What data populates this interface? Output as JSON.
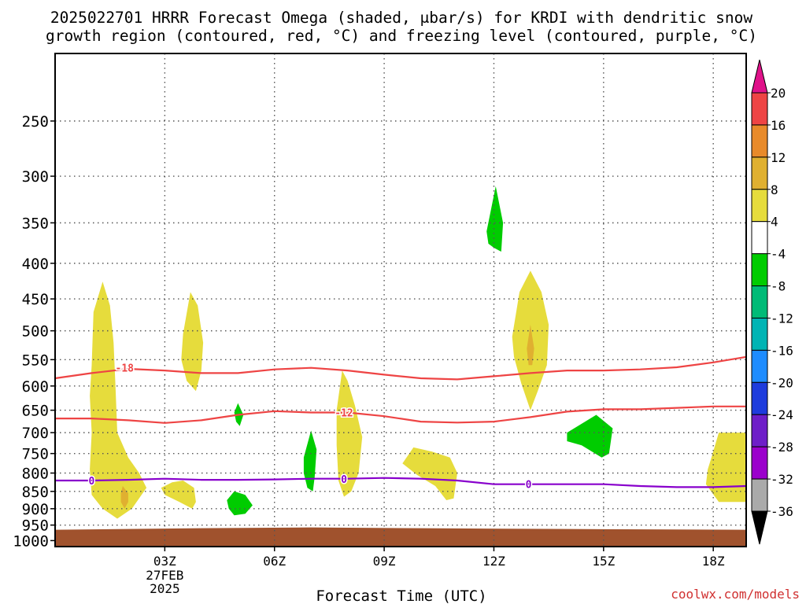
{
  "chart_data": {
    "type": "contour",
    "title_line1": "2025022701 HRRR Forecast Omega (shaded, μbar/s) for KRDI with dendritic snow",
    "title_line2": "growth region (contoured, red, °C) and freezing level (contoured, purple, °C)",
    "xlabel": "Forecast Time (UTC)",
    "credit": "coolwx.com/models",
    "x_ticks": [
      {
        "hour": 3,
        "label": "03Z"
      },
      {
        "hour": 6,
        "label": "06Z"
      },
      {
        "hour": 9,
        "label": "09Z"
      },
      {
        "hour": 12,
        "label": "12Z"
      },
      {
        "hour": 15,
        "label": "15Z"
      },
      {
        "hour": 18,
        "label": "18Z"
      }
    ],
    "date_label": [
      "27FEB",
      "2025"
    ],
    "xlim": [
      0,
      18.9
    ],
    "y_ticks": [
      250,
      300,
      350,
      400,
      450,
      500,
      550,
      600,
      650,
      700,
      750,
      800,
      850,
      900,
      950,
      1000
    ],
    "ylim_hPa": [
      200,
      1020
    ],
    "y_scale": "log-pressure",
    "grid": true,
    "ground_top_hPa": 965,
    "colors": {
      "frame": "#000000",
      "grid": "#555555",
      "ground": "#a0522d",
      "dgz_line": "#ee4444",
      "freezing_line": "#8800cc"
    },
    "colorbar": {
      "levels": [
        20,
        16,
        12,
        8,
        4,
        -4,
        -8,
        -12,
        -16,
        -20,
        -24,
        -28,
        -32,
        -36
      ],
      "bands": [
        {
          "from": 16,
          "to": 20,
          "color": "#ee4444"
        },
        {
          "from": 12,
          "to": 16,
          "color": "#e88a2a"
        },
        {
          "from": 8,
          "to": 12,
          "color": "#e0b030"
        },
        {
          "from": 4,
          "to": 8,
          "color": "#e6dc3c"
        },
        {
          "from": -4,
          "to": 4,
          "color": "#ffffff"
        },
        {
          "from": -8,
          "to": -4,
          "color": "#00cc00"
        },
        {
          "from": -12,
          "to": -8,
          "color": "#00bb77"
        },
        {
          "from": -16,
          "to": -12,
          "color": "#00b4b4"
        },
        {
          "from": -20,
          "to": -16,
          "color": "#1e8cff"
        },
        {
          "from": -24,
          "to": -20,
          "color": "#1e3cdd"
        },
        {
          "from": -28,
          "to": -24,
          "color": "#6e1ec8"
        },
        {
          "from": -32,
          "to": -28,
          "color": "#9b00cc"
        },
        {
          "from": -36,
          "to": -32,
          "color": "#aaaaaa"
        }
      ],
      "top_arrow_color": "#e0128a",
      "bottom_arrow_color": "#000000"
    },
    "contours": [
      {
        "name": "-18",
        "color": "#ee4444",
        "label": "-18",
        "label_at": [
          1.9,
          565
        ],
        "points": [
          [
            0,
            585
          ],
          [
            1,
            575
          ],
          [
            2,
            567
          ],
          [
            3,
            570
          ],
          [
            4,
            575
          ],
          [
            5,
            575
          ],
          [
            6,
            568
          ],
          [
            7,
            565
          ],
          [
            8,
            570
          ],
          [
            9,
            578
          ],
          [
            10,
            585
          ],
          [
            11,
            587
          ],
          [
            12,
            581
          ],
          [
            13,
            575
          ],
          [
            14,
            570
          ],
          [
            15,
            570
          ],
          [
            16,
            568
          ],
          [
            17,
            564
          ],
          [
            18,
            555
          ],
          [
            18.9,
            545
          ]
        ]
      },
      {
        "name": "-12",
        "color": "#ee4444",
        "label": "-12",
        "label_at": [
          7.9,
          655
        ],
        "points": [
          [
            0,
            668
          ],
          [
            1,
            668
          ],
          [
            2,
            672
          ],
          [
            3,
            678
          ],
          [
            4,
            672
          ],
          [
            5,
            660
          ],
          [
            6,
            652
          ],
          [
            7,
            655
          ],
          [
            8,
            655
          ],
          [
            9,
            663
          ],
          [
            10,
            675
          ],
          [
            11,
            677
          ],
          [
            12,
            675
          ],
          [
            13,
            665
          ],
          [
            14,
            653
          ],
          [
            15,
            648
          ],
          [
            16,
            648
          ],
          [
            17,
            645
          ],
          [
            18,
            642
          ],
          [
            18.9,
            642
          ]
        ]
      },
      {
        "name": "0",
        "color": "#8800cc",
        "label": "0",
        "label_at": [
          1.0,
          820
        ],
        "points": [
          [
            0,
            820
          ],
          [
            1,
            820
          ],
          [
            2,
            818
          ],
          [
            3,
            815
          ],
          [
            4,
            818
          ],
          [
            5,
            818
          ],
          [
            6,
            817
          ],
          [
            7,
            815
          ],
          [
            8,
            815
          ],
          [
            9,
            813
          ],
          [
            10,
            815
          ],
          [
            11,
            820
          ],
          [
            12,
            830
          ],
          [
            13,
            830
          ],
          [
            14,
            830
          ],
          [
            15,
            830
          ],
          [
            16,
            835
          ],
          [
            17,
            838
          ],
          [
            18,
            838
          ],
          [
            18.9,
            835
          ]
        ]
      }
    ],
    "extra_labels": [
      {
        "text": "0",
        "color": "#8800cc",
        "at": [
          7.9,
          816
        ]
      },
      {
        "text": "0",
        "color": "#8800cc",
        "at": [
          12.95,
          830
        ]
      }
    ],
    "shaded_regions": [
      {
        "level": "4 to 8",
        "color": "#e6dc3c",
        "points": [
          [
            1.0,
            560
          ],
          [
            1.05,
            470
          ],
          [
            1.3,
            425
          ],
          [
            1.5,
            460
          ],
          [
            1.6,
            520
          ],
          [
            1.65,
            600
          ],
          [
            1.7,
            700
          ],
          [
            2.0,
            760
          ],
          [
            2.3,
            800
          ],
          [
            2.5,
            840
          ],
          [
            2.1,
            900
          ],
          [
            1.7,
            930
          ],
          [
            1.3,
            900
          ],
          [
            1.0,
            860
          ],
          [
            0.95,
            790
          ],
          [
            1.0,
            700
          ],
          [
            0.95,
            620
          ]
        ]
      },
      {
        "level": "4 to 8",
        "color": "#e6dc3c",
        "points": [
          [
            3.5,
            820
          ],
          [
            3.8,
            840
          ],
          [
            3.85,
            880
          ],
          [
            3.75,
            900
          ],
          [
            3.4,
            880
          ],
          [
            3.0,
            860
          ],
          [
            2.9,
            840
          ],
          [
            3.2,
            825
          ]
        ]
      },
      {
        "level": "8 to 12",
        "color": "#e0b030",
        "points": [
          [
            1.85,
            835
          ],
          [
            2.0,
            855
          ],
          [
            2.0,
            880
          ],
          [
            1.9,
            900
          ],
          [
            1.8,
            880
          ],
          [
            1.8,
            855
          ]
        ]
      },
      {
        "level": "4 to 8",
        "color": "#e6dc3c",
        "points": [
          [
            3.5,
            505
          ],
          [
            3.7,
            440
          ],
          [
            3.9,
            460
          ],
          [
            4.05,
            520
          ],
          [
            4.0,
            570
          ],
          [
            3.85,
            610
          ],
          [
            3.6,
            590
          ],
          [
            3.45,
            550
          ]
        ]
      },
      {
        "level": "4 to 8",
        "color": "#e6dc3c",
        "points": [
          [
            7.7,
            650
          ],
          [
            7.85,
            570
          ],
          [
            8.0,
            590
          ],
          [
            8.2,
            640
          ],
          [
            8.4,
            710
          ],
          [
            8.3,
            800
          ],
          [
            8.1,
            850
          ],
          [
            7.9,
            865
          ],
          [
            7.75,
            820
          ],
          [
            7.7,
            730
          ]
        ]
      },
      {
        "level": "4 to 8",
        "color": "#e6dc3c",
        "points": [
          [
            9.5,
            775
          ],
          [
            9.8,
            735
          ],
          [
            10.3,
            745
          ],
          [
            10.8,
            760
          ],
          [
            11.0,
            800
          ],
          [
            10.9,
            870
          ],
          [
            10.7,
            875
          ],
          [
            10.4,
            835
          ],
          [
            9.9,
            805
          ]
        ]
      },
      {
        "level": "4 to 8",
        "color": "#e6dc3c",
        "points": [
          [
            12.5,
            510
          ],
          [
            12.7,
            440
          ],
          [
            13.0,
            410
          ],
          [
            13.3,
            440
          ],
          [
            13.5,
            490
          ],
          [
            13.45,
            560
          ],
          [
            13.2,
            610
          ],
          [
            13.0,
            650
          ],
          [
            12.75,
            595
          ],
          [
            12.55,
            545
          ]
        ]
      },
      {
        "level": "8 to 12",
        "color": "#e0b030",
        "points": [
          [
            12.9,
            530
          ],
          [
            13.0,
            490
          ],
          [
            13.1,
            530
          ],
          [
            13.05,
            560
          ],
          [
            12.95,
            560
          ]
        ]
      },
      {
        "level": "4 to 8",
        "color": "#e6dc3c",
        "points": [
          [
            17.95,
            760
          ],
          [
            18.15,
            700
          ],
          [
            18.9,
            700
          ],
          [
            18.9,
            880
          ],
          [
            18.15,
            880
          ],
          [
            17.8,
            830
          ],
          [
            17.85,
            790
          ]
        ]
      },
      {
        "level": "-8 to -4",
        "color": "#00cc00",
        "points": [
          [
            4.9,
            655
          ],
          [
            5.0,
            635
          ],
          [
            5.15,
            660
          ],
          [
            5.05,
            685
          ],
          [
            4.95,
            675
          ]
        ]
      },
      {
        "level": "-8 to -4",
        "color": "#00cc00",
        "points": [
          [
            4.7,
            875
          ],
          [
            4.9,
            850
          ],
          [
            5.2,
            860
          ],
          [
            5.4,
            890
          ],
          [
            5.2,
            915
          ],
          [
            4.9,
            920
          ],
          [
            4.75,
            900
          ]
        ]
      },
      {
        "level": "-8 to -4",
        "color": "#00cc00",
        "points": [
          [
            6.8,
            760
          ],
          [
            7.0,
            695
          ],
          [
            7.15,
            740
          ],
          [
            7.1,
            810
          ],
          [
            7.05,
            850
          ],
          [
            6.9,
            840
          ],
          [
            6.8,
            800
          ]
        ]
      },
      {
        "level": "-8 to -4",
        "color": "#00cc00",
        "points": [
          [
            11.8,
            360
          ],
          [
            12.05,
            310
          ],
          [
            12.25,
            350
          ],
          [
            12.2,
            385
          ],
          [
            12.0,
            380
          ],
          [
            11.85,
            375
          ]
        ]
      },
      {
        "level": "-8 to -4",
        "color": "#00cc00",
        "points": [
          [
            14.0,
            700
          ],
          [
            14.8,
            660
          ],
          [
            15.25,
            690
          ],
          [
            15.15,
            750
          ],
          [
            14.95,
            760
          ],
          [
            14.4,
            730
          ],
          [
            14.0,
            720
          ]
        ]
      }
    ]
  }
}
